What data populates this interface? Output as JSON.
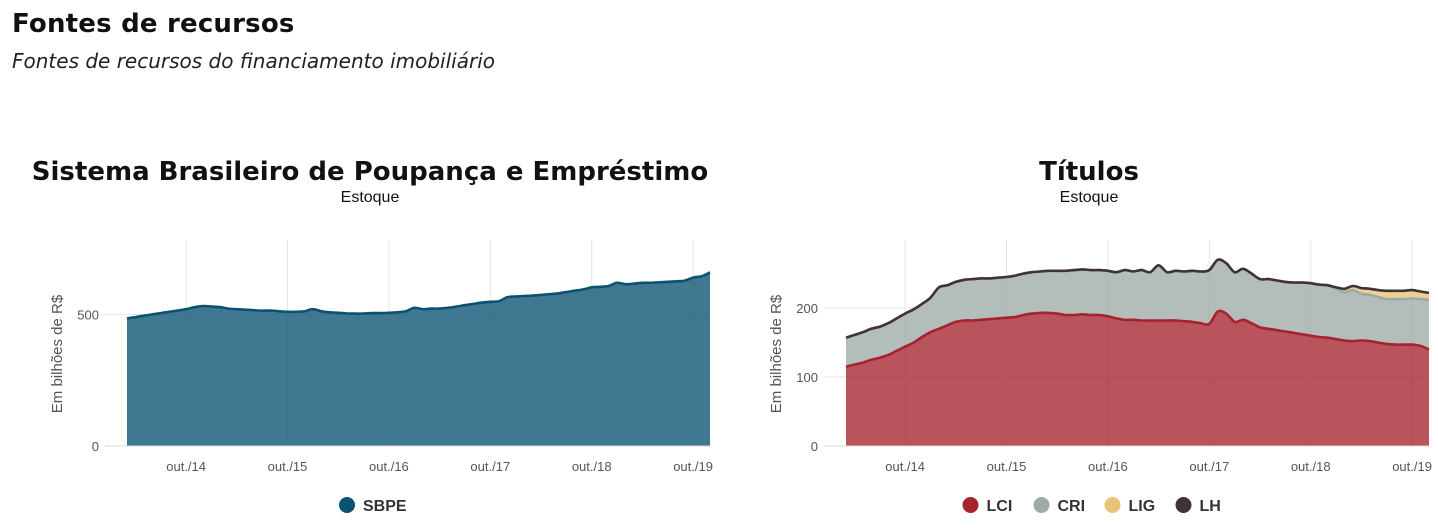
{
  "page": {
    "title": "Fontes de recursos",
    "subtitle": "Fontes de recursos do financiamento imobiliário"
  },
  "chart_data": [
    {
      "type": "area",
      "title": "Sistema Brasileiro de Poupança e Empréstimo",
      "subtitle": "Estoque",
      "ylabel": "Em bilhões de R$",
      "xlabel": "",
      "x_ticks": [
        "out./14",
        "out./15",
        "out./16",
        "out./17",
        "out./18",
        "out./19"
      ],
      "x_tick_index": [
        7,
        19,
        31,
        43,
        55,
        67
      ],
      "y_ticks": [
        0,
        500
      ],
      "ylim": [
        0,
        760
      ],
      "legend_position": "bottom",
      "x": [
        "mar./14",
        "abr./14",
        "mai./14",
        "jun./14",
        "jul./14",
        "ago./14",
        "set./14",
        "out./14",
        "nov./14",
        "dez./14",
        "jan./15",
        "fev./15",
        "mar./15",
        "abr./15",
        "mai./15",
        "jun./15",
        "jul./15",
        "ago./15",
        "set./15",
        "out./15",
        "nov./15",
        "dez./15",
        "jan./16",
        "fev./16",
        "mar./16",
        "abr./16",
        "mai./16",
        "jun./16",
        "jul./16",
        "ago./16",
        "set./16",
        "out./16",
        "nov./16",
        "dez./16",
        "jan./17",
        "fev./17",
        "mar./17",
        "abr./17",
        "mai./17",
        "jun./17",
        "jul./17",
        "ago./17",
        "set./17",
        "out./17",
        "nov./17",
        "dez./17",
        "jan./18",
        "fev./18",
        "mar./18",
        "abr./18",
        "mai./18",
        "jun./18",
        "jul./18",
        "ago./18",
        "set./18",
        "out./18",
        "nov./18",
        "dez./18",
        "jan./19",
        "fev./19",
        "mar./19",
        "abr./19",
        "mai./19",
        "jun./19",
        "jul./19",
        "ago./19",
        "set./19",
        "out./19",
        "nov./19",
        "dez./19"
      ],
      "series": [
        {
          "name": "SBPE",
          "color": "#0b5272",
          "values": [
            485,
            490,
            495,
            500,
            505,
            510,
            515,
            520,
            528,
            532,
            530,
            528,
            522,
            520,
            518,
            516,
            514,
            515,
            512,
            510,
            510,
            512,
            520,
            512,
            508,
            506,
            504,
            503,
            503,
            505,
            505,
            506,
            508,
            512,
            525,
            520,
            522,
            522,
            525,
            530,
            535,
            540,
            545,
            548,
            550,
            565,
            568,
            570,
            572,
            574,
            577,
            580,
            585,
            590,
            595,
            603,
            605,
            608,
            620,
            615,
            617,
            620,
            620,
            622,
            624,
            626,
            628,
            640,
            645,
            660
          ]
        }
      ]
    },
    {
      "type": "area",
      "title": "Títulos",
      "subtitle": "Estoque",
      "ylabel": "Em bilhões de R$",
      "xlabel": "",
      "x_ticks": [
        "out./14",
        "out./15",
        "out./16",
        "out./17",
        "out./18",
        "out./19"
      ],
      "x_tick_index": [
        7,
        19,
        31,
        43,
        55,
        67
      ],
      "y_ticks": [
        0,
        100,
        200
      ],
      "ylim": [
        0,
        290
      ],
      "stacked": true,
      "legend_position": "bottom",
      "x": [
        "mar./14",
        "abr./14",
        "mai./14",
        "jun./14",
        "jul./14",
        "ago./14",
        "set./14",
        "out./14",
        "nov./14",
        "dez./14",
        "jan./15",
        "fev./15",
        "mar./15",
        "abr./15",
        "mai./15",
        "jun./15",
        "jul./15",
        "ago./15",
        "set./15",
        "out./15",
        "nov./15",
        "dez./15",
        "jan./16",
        "fev./16",
        "mar./16",
        "abr./16",
        "mai./16",
        "jun./16",
        "jul./16",
        "ago./16",
        "set./16",
        "out./16",
        "nov./16",
        "dez./16",
        "jan./17",
        "fev./17",
        "mar./17",
        "abr./17",
        "mai./17",
        "jun./17",
        "jul./17",
        "ago./17",
        "set./17",
        "out./17",
        "nov./17",
        "dez./17",
        "jan./18",
        "fev./18",
        "mar./18",
        "abr./18",
        "mai./18",
        "jun./18",
        "jul./18",
        "ago./18",
        "set./18",
        "out./18",
        "nov./18",
        "dez./18",
        "jan./19",
        "fev./19",
        "mar./19",
        "abr./19",
        "mai./19",
        "jun./19",
        "jul./19",
        "ago./19",
        "set./19",
        "out./19",
        "nov./19",
        "dez./19"
      ],
      "series": [
        {
          "name": "LCI",
          "color": "#a5232e",
          "values": [
            115,
            118,
            121,
            125,
            128,
            132,
            138,
            144,
            150,
            158,
            165,
            170,
            175,
            180,
            182,
            182,
            183,
            184,
            185,
            186,
            187,
            190,
            192,
            193,
            193,
            192,
            190,
            190,
            191,
            190,
            190,
            188,
            185,
            183,
            183,
            182,
            182,
            182,
            182,
            182,
            181,
            180,
            178,
            177,
            195,
            192,
            180,
            183,
            178,
            172,
            170,
            168,
            166,
            164,
            162,
            160,
            158,
            157,
            155,
            153,
            152,
            153,
            152,
            150,
            148,
            147,
            147,
            147,
            145,
            140
          ]
        },
        {
          "name": "CRI",
          "color": "#9eaaa6",
          "values": [
            42,
            43,
            44,
            45,
            45,
            46,
            47,
            48,
            48,
            48,
            50,
            60,
            58,
            58,
            59,
            60,
            60,
            59,
            59,
            59,
            60,
            60,
            60,
            60,
            61,
            62,
            64,
            65,
            65,
            65,
            65,
            66,
            67,
            72,
            70,
            73,
            70,
            80,
            70,
            72,
            72,
            74,
            75,
            78,
            75,
            73,
            72,
            74,
            72,
            70,
            72,
            72,
            72,
            73,
            75,
            76,
            76,
            76,
            73,
            70,
            74,
            68,
            67,
            66,
            65,
            66,
            66,
            67,
            68,
            72
          ]
        },
        {
          "name": "LIG",
          "color": "#e8c476",
          "values": [
            0,
            0,
            0,
            0,
            0,
            0,
            0,
            0,
            0,
            0,
            0,
            0,
            0,
            0,
            0,
            0,
            0,
            0,
            0,
            0,
            0,
            0,
            0,
            0,
            0,
            0,
            0,
            0,
            0,
            0,
            0,
            0,
            0,
            0,
            0,
            0,
            0,
            0,
            0,
            0,
            0,
            0,
            0,
            0,
            0,
            0,
            0,
            0,
            0,
            0,
            0,
            0,
            0,
            0,
            0,
            0,
            0,
            0,
            2,
            5,
            6,
            8,
            9,
            10,
            12,
            12,
            12,
            12,
            11,
            10
          ]
        },
        {
          "name": "LH",
          "color": "#3f3336",
          "values": [
            0,
            0,
            0,
            0,
            0,
            0,
            0,
            0,
            0,
            0,
            0,
            0,
            0,
            0,
            0,
            0,
            0,
            0,
            0,
            0,
            0,
            0,
            0,
            0,
            0,
            0,
            0,
            0,
            0,
            0,
            0,
            0,
            0,
            0,
            0,
            0,
            0,
            0,
            0,
            0,
            0,
            0,
            0,
            0,
            0,
            0,
            0,
            0,
            0,
            0,
            0,
            0,
            0,
            0,
            0,
            0,
            0,
            0,
            0,
            0,
            0,
            0,
            0,
            0,
            0,
            0,
            0,
            0,
            0,
            0
          ]
        }
      ]
    }
  ]
}
